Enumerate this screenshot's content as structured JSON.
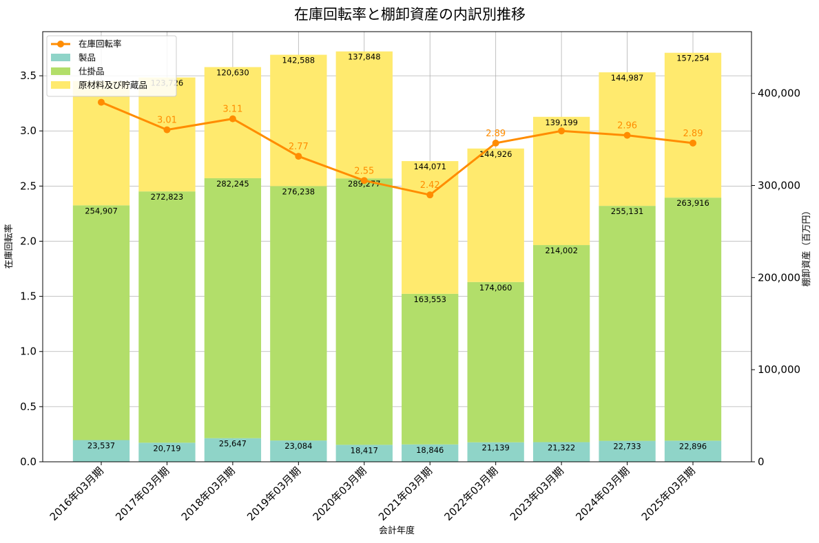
{
  "chart_data": {
    "type": "bar",
    "title": "在庫回転率と棚卸資産の内訳別推移",
    "xlabel": "会計年度",
    "ylabel": "在庫回転率",
    "y2label": "棚卸資産（百万円）",
    "categories": [
      "2016年03月期",
      "2017年03月期",
      "2018年03月期",
      "2019年03月期",
      "2020年03月期",
      "2021年03月期",
      "2022年03月期",
      "2023年03月期",
      "2024年03月期",
      "2025年03月期"
    ],
    "ylim": [
      0,
      3.9
    ],
    "y2lim": [
      0,
      467000
    ],
    "yticks": [
      0.0,
      0.5,
      1.0,
      1.5,
      2.0,
      2.5,
      3.0,
      3.5
    ],
    "ytick_labels": [
      "0.0",
      "0.5",
      "1.0",
      "1.5",
      "2.0",
      "2.5",
      "3.0",
      "3.5"
    ],
    "y2ticks": [
      0,
      100000,
      200000,
      300000,
      400000
    ],
    "y2tick_labels": [
      "0",
      "100,000",
      "200,000",
      "300,000",
      "400,000"
    ],
    "grid": true,
    "legend_position": "top-left",
    "stacked_series": [
      {
        "name": "製品",
        "color": "#8fd4c8",
        "values": [
          23537,
          20719,
          25647,
          23084,
          18417,
          18846,
          21139,
          21322,
          22733,
          22896
        ],
        "labels": [
          "23,537",
          "20,719",
          "25,647",
          "23,084",
          "18,417",
          "18,846",
          "21,139",
          "21,322",
          "22,733",
          "22,896"
        ]
      },
      {
        "name": "仕掛品",
        "color": "#b2de6a",
        "values": [
          254907,
          272823,
          282245,
          276238,
          289277,
          163553,
          174060,
          214002,
          255131,
          263916
        ],
        "labels": [
          "254,907",
          "272,823",
          "282,245",
          "276,238",
          "289,277",
          "163,553",
          "174,060",
          "214,002",
          "255,131",
          "263,916"
        ]
      },
      {
        "name": "原材料及び貯蔵品",
        "color": "#ffea6e",
        "values": [
          135000,
          123726,
          120630,
          142588,
          137848,
          144071,
          144926,
          139199,
          144987,
          157254
        ],
        "labels": [
          "",
          "123,726",
          "120,630",
          "142,588",
          "137,848",
          "144,071",
          "144,926",
          "139,199",
          "144,987",
          "157,254"
        ]
      }
    ],
    "line_series": {
      "name": "在庫回転率",
      "color": "#ff8c00",
      "values": [
        3.26,
        3.01,
        3.11,
        2.77,
        2.55,
        2.42,
        2.89,
        3.0,
        2.96,
        2.89
      ],
      "labels": [
        "",
        "3.01",
        "3.11",
        "2.77",
        "2.55",
        "2.42",
        "2.89",
        "",
        "2.96",
        "2.89"
      ]
    }
  }
}
